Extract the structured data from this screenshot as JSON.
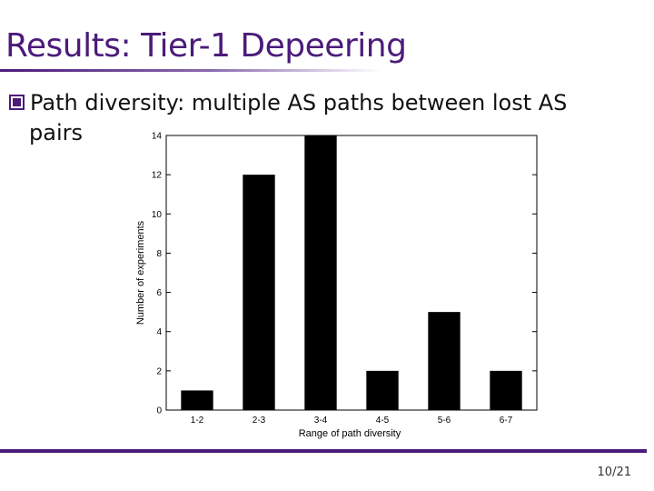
{
  "slide": {
    "title": "Results: Tier-1 Depeering",
    "bullet_line1": "Path diversity: multiple AS paths between lost AS",
    "bullet_line2": "pairs",
    "page_number": "10/21"
  },
  "colors": {
    "title": "#4b1b7a",
    "rule": "#4b1b7a",
    "bar": "#000000"
  },
  "chart_data": {
    "type": "bar",
    "categories": [
      "1-2",
      "2-3",
      "3-4",
      "4-5",
      "5-6",
      "6-7"
    ],
    "values": [
      1,
      12,
      14,
      2,
      5,
      2
    ],
    "title": "",
    "xlabel": "Range of path diversity",
    "ylabel": "Number of experiments",
    "ylim": [
      0,
      14
    ],
    "yticks": [
      0,
      2,
      4,
      6,
      8,
      10,
      12,
      14
    ],
    "grid": false
  }
}
